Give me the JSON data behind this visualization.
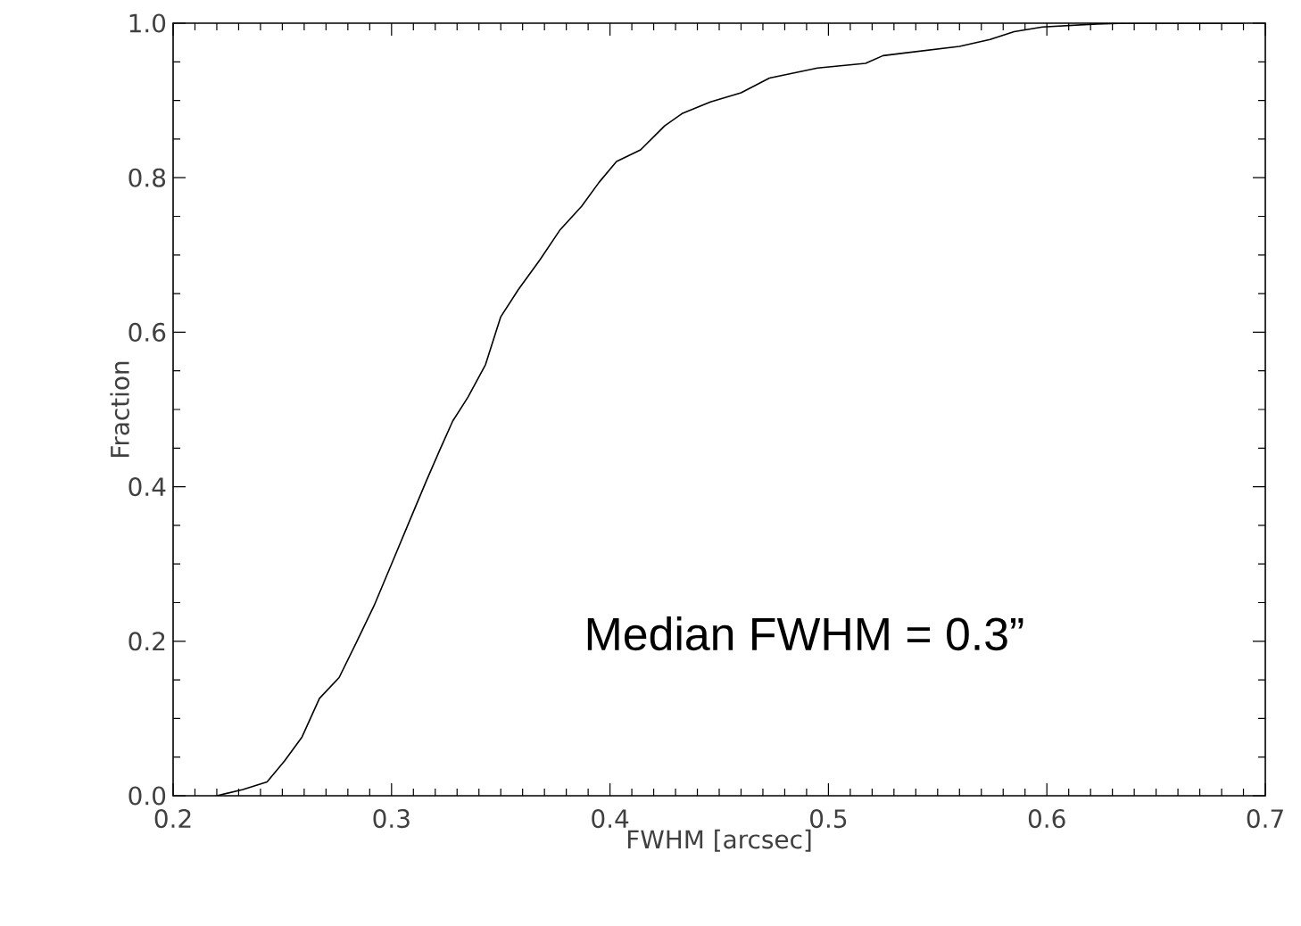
{
  "chart_data": {
    "type": "line",
    "xlabel": "FWHM [arcsec]",
    "ylabel": "Fraction",
    "annotations": [
      "Median FWHM = 0.3”"
    ],
    "x": [
      0.22,
      0.232,
      0.243,
      0.251,
      0.259,
      0.267,
      0.276,
      0.284,
      0.292,
      0.3,
      0.308,
      0.316,
      0.322,
      0.328,
      0.335,
      0.343,
      0.35,
      0.358,
      0.368,
      0.377,
      0.387,
      0.395,
      0.403,
      0.414,
      0.425,
      0.433,
      0.446,
      0.46,
      0.473,
      0.495,
      0.517,
      0.525,
      0.56,
      0.574,
      0.585,
      0.598,
      0.623,
      0.636,
      0.69
    ],
    "series": [
      {
        "color": "#000000",
        "values": [
          0.0,
          0.008,
          0.018,
          0.045,
          0.076,
          0.126,
          0.153,
          0.199,
          0.246,
          0.3,
          0.354,
          0.408,
          0.447,
          0.485,
          0.516,
          0.558,
          0.62,
          0.655,
          0.694,
          0.732,
          0.763,
          0.794,
          0.821,
          0.836,
          0.867,
          0.883,
          0.898,
          0.91,
          0.929,
          0.942,
          0.948,
          0.958,
          0.97,
          0.979,
          0.989,
          0.995,
          0.999,
          1.0,
          1.0
        ]
      }
    ],
    "xlim": [
      0.2,
      0.7
    ],
    "ylim": [
      0,
      1.0
    ],
    "xticks": [
      0.2,
      0.3,
      0.4,
      0.5,
      0.6,
      0.7
    ],
    "yticks": [
      {
        "value": 0,
        "label": "0.0"
      },
      0.2,
      0.4,
      0.6,
      0.8,
      {
        "value": 1.0,
        "label": "1.0"
      }
    ]
  }
}
